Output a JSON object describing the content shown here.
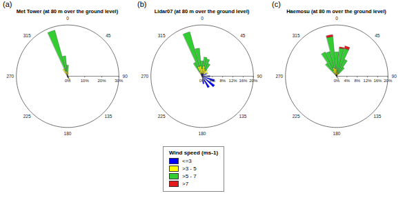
{
  "chart_data": [
    {
      "type": "windrose",
      "label": "(a)",
      "title": "Met Tower (at 80 m over the ground level)",
      "rlim": [
        0,
        30
      ],
      "rticks": [
        {
          "value": 0,
          "label": "0%"
        },
        {
          "value": 10,
          "label": "10%"
        },
        {
          "value": 20,
          "label": "20%"
        },
        {
          "value": 30,
          "label": "30%"
        }
      ],
      "directions": [
        0,
        45,
        90,
        135,
        180,
        225,
        270,
        315
      ],
      "x": [
        290,
        330,
        340,
        350,
        0,
        10,
        120,
        150,
        160,
        200
      ],
      "series": [
        {
          "name": "<=3",
          "color": "#0000ff",
          "values": [
            0.4,
            0.3,
            0.5,
            0.5,
            0.5,
            0.5,
            0.8,
            1.2,
            1,
            0.6
          ]
        },
        {
          "name": ">3 - 5",
          "color": "#ffff00",
          "values": [
            0,
            4.5,
            3,
            2.5,
            2,
            1.5,
            0,
            1.5,
            0.5,
            0
          ]
        },
        {
          "name": ">5 - 7",
          "color": "#33cc33",
          "values": [
            0,
            0,
            24.5,
            9,
            4,
            0,
            0,
            0,
            0,
            0
          ]
        },
        {
          "name": ">7",
          "color": "#e41a1c",
          "values": [
            0,
            0,
            0,
            0,
            0,
            0,
            0,
            0,
            0,
            0
          ]
        }
      ]
    },
    {
      "type": "windrose",
      "label": "(b)",
      "title": "Lidar07 (at 80 m over the ground level)",
      "rlim": [
        0,
        20
      ],
      "rticks": [
        {
          "value": 0,
          "label": "0%"
        },
        {
          "value": 4,
          "label": "4%"
        },
        {
          "value": 8,
          "label": "8%"
        },
        {
          "value": 12,
          "label": "12%"
        },
        {
          "value": 16,
          "label": "16%"
        },
        {
          "value": 20,
          "label": "20%"
        }
      ],
      "directions": [
        0,
        45,
        90,
        135,
        180,
        225,
        270,
        315
      ],
      "x": [
        330,
        340,
        350,
        0,
        10,
        20,
        30,
        40,
        60,
        90,
        110,
        130,
        150,
        170
      ],
      "series": [
        {
          "name": "<=3",
          "color": "#0000ff",
          "values": [
            0.5,
            1,
            1,
            1,
            1,
            1,
            1,
            1,
            2,
            3,
            5,
            6,
            5,
            3
          ]
        },
        {
          "name": ">3 - 5",
          "color": "#ffff00",
          "values": [
            1.5,
            3,
            3,
            2,
            3,
            2,
            1.5,
            2,
            0.5,
            0,
            0,
            0,
            0,
            0
          ]
        },
        {
          "name": ">5 - 7",
          "color": "#33cc33",
          "values": [
            4,
            14,
            7,
            3,
            3.5,
            4,
            3,
            0,
            0,
            0,
            0,
            0,
            0,
            0
          ]
        },
        {
          "name": ">7",
          "color": "#e41a1c",
          "values": [
            0,
            0,
            0,
            0,
            0,
            0,
            0,
            0,
            0,
            0,
            0,
            0,
            0,
            0
          ]
        }
      ],
      "legend": "bottom",
      "legend_title": "Wind speed (ms-1)"
    },
    {
      "type": "windrose",
      "label": "(c)",
      "title": "Haemosu (at 80 m over the ground level)",
      "rlim": [
        0,
        20
      ],
      "rticks": [
        {
          "value": 0,
          "label": "0%"
        },
        {
          "value": 4,
          "label": "4%"
        },
        {
          "value": 8,
          "label": "8%"
        },
        {
          "value": 12,
          "label": "12%"
        },
        {
          "value": 16,
          "label": "16%"
        },
        {
          "value": 20,
          "label": "20%"
        }
      ],
      "directions": [
        0,
        45,
        90,
        135,
        180,
        225,
        270,
        315
      ],
      "x": [
        320,
        330,
        340,
        350,
        0,
        10,
        20,
        30,
        40,
        150
      ],
      "series": [
        {
          "name": "<=3",
          "color": "#0000ff",
          "values": [
            0.3,
            0.5,
            0.5,
            0.5,
            0.5,
            0.5,
            0.3,
            0.3,
            0.3,
            0.5
          ]
        },
        {
          "name": ">3 - 5",
          "color": "#ffff00",
          "values": [
            1,
            2,
            3,
            2.5,
            1,
            1.5,
            1,
            1,
            1,
            0.8
          ]
        },
        {
          "name": ">5 - 7",
          "color": "#33cc33",
          "values": [
            5,
            8,
            6.5,
            12.5,
            8,
            9,
            10,
            6,
            3,
            0
          ]
        },
        {
          "name": ">7",
          "color": "#e41a1c",
          "values": [
            0,
            0,
            0,
            0.8,
            0,
            0.5,
            1,
            0,
            0,
            0
          ]
        }
      ]
    }
  ]
}
